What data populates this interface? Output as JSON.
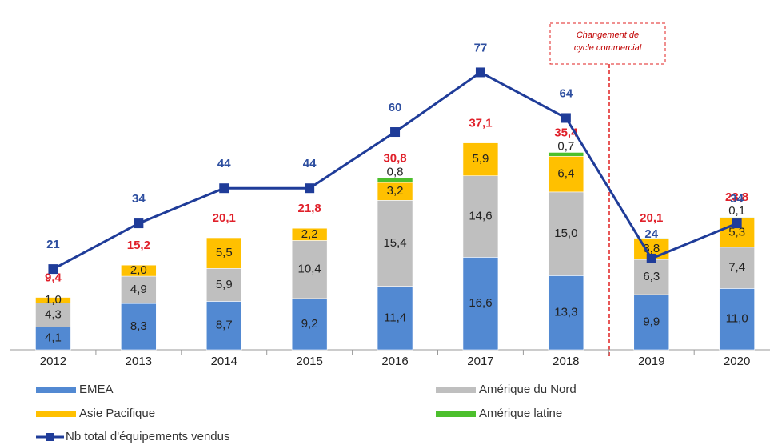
{
  "chart_data": {
    "type": "bar",
    "categories": [
      "2012",
      "2013",
      "2014",
      "2015",
      "2016",
      "2017",
      "2018",
      "2019",
      "2020"
    ],
    "ylim": [
      0,
      57
    ],
    "y2lim": [
      -2,
      88.5
    ],
    "series": [
      {
        "name": "EMEA",
        "color": "#5289d2",
        "values": [
          4.1,
          8.3,
          8.7,
          9.2,
          11.4,
          16.6,
          13.3,
          9.9,
          11.0
        ],
        "value_labels": [
          "4,1",
          "8,3",
          "8,7",
          "9,2",
          "11,4",
          "16,6",
          "13,3",
          "9,9",
          "11,0"
        ]
      },
      {
        "name": "Amérique du Nord",
        "color": "#bfbfbf",
        "values": [
          4.3,
          4.9,
          5.9,
          10.4,
          15.4,
          14.6,
          15.0,
          6.3,
          7.4
        ],
        "value_labels": [
          "4,3",
          "4,9",
          "5,9",
          "10,4",
          "15,4",
          "14,6",
          "15,0",
          "6,3",
          "7,4"
        ]
      },
      {
        "name": "Asie Pacifique",
        "color": "#ffc000",
        "values": [
          1.0,
          2.0,
          5.5,
          2.2,
          3.2,
          5.9,
          6.4,
          3.8,
          5.3
        ],
        "value_labels": [
          "1,0",
          "2,0",
          "5,5",
          "2,2",
          "3,2",
          "5,9",
          "6,4",
          "3,8",
          "5,3"
        ]
      },
      {
        "name": "Amérique latine",
        "color": "#4cbf2c",
        "values": [
          0,
          0,
          0,
          0,
          0.8,
          0,
          0.7,
          0.1,
          0.1
        ],
        "value_labels": [
          null,
          null,
          null,
          null,
          "0,8",
          null,
          "0,7",
          null,
          "0,1"
        ]
      },
      {
        "name": "Nb total d'équipements vendus",
        "type": "line",
        "axis": "y2",
        "color": "#1f3c99",
        "values": [
          21,
          34,
          44,
          44,
          60,
          77,
          64,
          24,
          34
        ]
      }
    ],
    "totals": {
      "values": [
        9.4,
        15.2,
        20.1,
        21.8,
        30.8,
        37.1,
        35.4,
        20.1,
        23.8
      ],
      "value_labels": [
        "9,4",
        "15,2",
        "20,1",
        "21,8",
        "30,8",
        "37,1",
        "35,4",
        "20,1",
        "23,8"
      ]
    },
    "annotation": [
      "Changement  de",
      "cycle commercial"
    ]
  }
}
